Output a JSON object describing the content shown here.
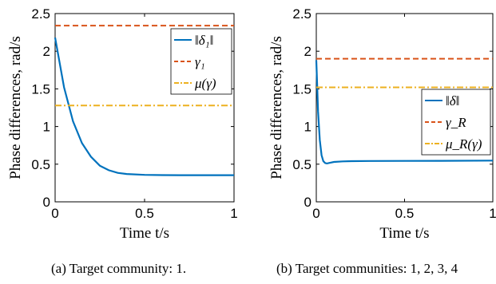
{
  "chart_data": [
    {
      "type": "line",
      "caption": "(a) Target community: 1.",
      "xlabel": "Time t/s",
      "ylabel": "Phase differences, rad/s",
      "xlim": [
        0,
        1
      ],
      "ylim": [
        0,
        2.5
      ],
      "xticks": [
        "0",
        "0.5",
        "1"
      ],
      "yticks": [
        "0",
        "0.5",
        "1",
        "1.5",
        "2",
        "2.5"
      ],
      "grid": false,
      "legend_position": "top-right",
      "series": [
        {
          "name": "‖δ₁‖",
          "style": "solid",
          "color": "#0072BD",
          "x": [
            0,
            0.05,
            0.1,
            0.15,
            0.2,
            0.25,
            0.3,
            0.35,
            0.4,
            0.5,
            0.6,
            0.7,
            0.8,
            0.9,
            1.0
          ],
          "y": [
            2.18,
            1.52,
            1.07,
            0.78,
            0.6,
            0.48,
            0.42,
            0.385,
            0.37,
            0.358,
            0.355,
            0.354,
            0.354,
            0.354,
            0.354
          ]
        },
        {
          "name": "γ₁",
          "style": "dashed",
          "color": "#D95319",
          "x": [
            0,
            1
          ],
          "y": [
            2.34,
            2.34
          ]
        },
        {
          "name": "μ(γ)",
          "style": "dashdot",
          "color": "#EDB120",
          "x": [
            0,
            1
          ],
          "y": [
            1.28,
            1.28
          ]
        }
      ]
    },
    {
      "type": "line",
      "caption": "(b) Target communities: 1, 2, 3, 4",
      "xlabel": "Time t/s",
      "ylabel": "Phase differences, rad/s",
      "xlim": [
        0,
        1
      ],
      "ylim": [
        0,
        2.5
      ],
      "xticks": [
        "0",
        "0.5",
        "1"
      ],
      "yticks": [
        "0",
        "0.5",
        "1",
        "1.5",
        "2",
        "2.5"
      ],
      "grid": false,
      "legend_position": "middle-right",
      "series": [
        {
          "name": "‖δ‖",
          "style": "solid",
          "color": "#0072BD",
          "x": [
            0,
            0.005,
            0.01,
            0.02,
            0.03,
            0.04,
            0.05,
            0.06,
            0.08,
            0.1,
            0.15,
            0.2,
            0.3,
            0.5,
            0.7,
            1.0
          ],
          "y": [
            1.88,
            1.55,
            1.2,
            0.82,
            0.62,
            0.54,
            0.515,
            0.51,
            0.52,
            0.53,
            0.537,
            0.54,
            0.542,
            0.543,
            0.545,
            0.548
          ]
        },
        {
          "name": "γ_R",
          "style": "dashed",
          "color": "#D95319",
          "x": [
            0,
            1
          ],
          "y": [
            1.9,
            1.9
          ]
        },
        {
          "name": "μ_R(γ)",
          "style": "dashdot",
          "color": "#EDB120",
          "x": [
            0,
            1
          ],
          "y": [
            1.52,
            1.52
          ]
        }
      ]
    }
  ]
}
